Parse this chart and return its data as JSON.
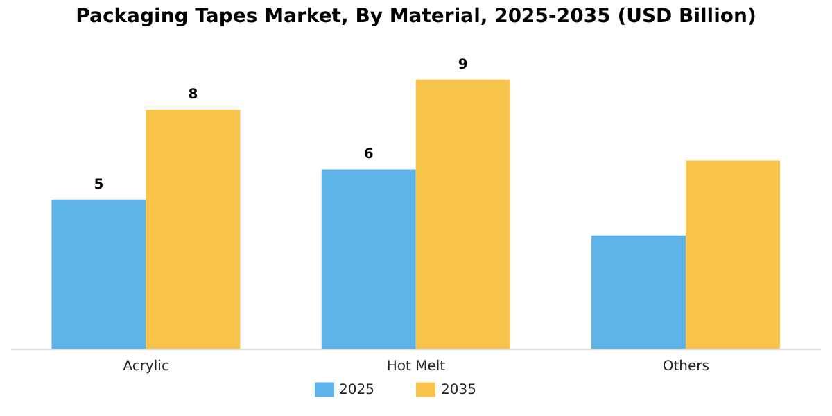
{
  "chart_data": {
    "type": "bar",
    "title": "Packaging Tapes Market, By Material, 2025-2035 (USD Billion)",
    "categories": [
      "Acrylic",
      "Hot Melt",
      "Others"
    ],
    "series": [
      {
        "name": "2025",
        "color": "#5db3e8",
        "values": [
          5,
          6,
          3.8
        ],
        "value_labels": [
          "5",
          "6",
          null
        ]
      },
      {
        "name": "2035",
        "color": "#f9c44b",
        "values": [
          8,
          9,
          6.3
        ],
        "value_labels": [
          "8",
          "9",
          null
        ]
      }
    ],
    "legend": "bottom",
    "grid": false,
    "tick_labels": "x"
  }
}
